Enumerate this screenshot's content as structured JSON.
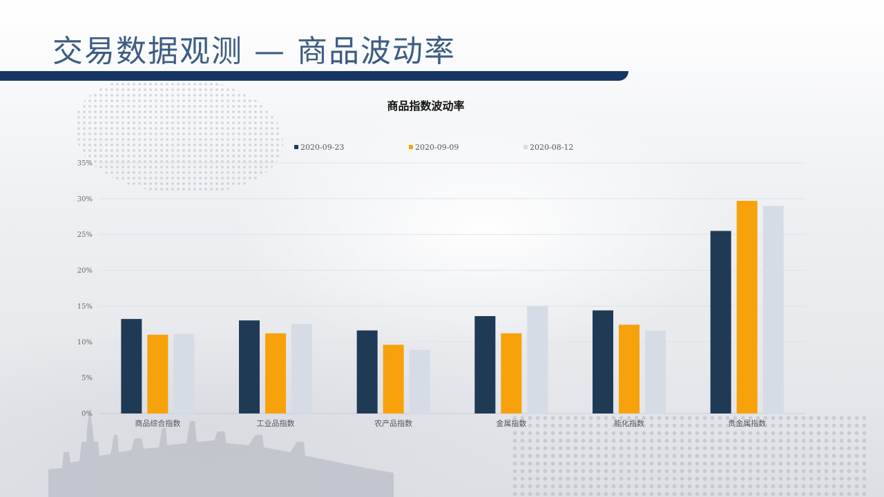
{
  "page": {
    "title": "交易数据观测 — 商品波动率"
  },
  "chart_data": {
    "type": "bar",
    "title": "商品指数波动率",
    "categories": [
      "商品综合指数",
      "工业品指数",
      "农产品指数",
      "金属指数",
      "能化指数",
      "贵金属指数"
    ],
    "series": [
      {
        "name": "2020-09-23",
        "color": "#1f3a55",
        "values": [
          13.2,
          13.0,
          11.6,
          13.6,
          14.4,
          25.5
        ]
      },
      {
        "name": "2020-09-09",
        "color": "#f7a20b",
        "values": [
          11.0,
          11.2,
          9.6,
          11.2,
          12.4,
          29.7
        ]
      },
      {
        "name": "2020-08-12",
        "color": "#d6dce5",
        "values": [
          11.1,
          12.5,
          8.9,
          15.0,
          11.6,
          29.0
        ]
      }
    ],
    "ylim": [
      0,
      35
    ],
    "yticks": [
      "0%",
      "5%",
      "10%",
      "15%",
      "20%",
      "25%",
      "30%",
      "35%"
    ],
    "ytick_values": [
      0,
      5,
      10,
      15,
      20,
      25,
      30,
      35
    ],
    "grid": true,
    "legend": "top-center"
  }
}
